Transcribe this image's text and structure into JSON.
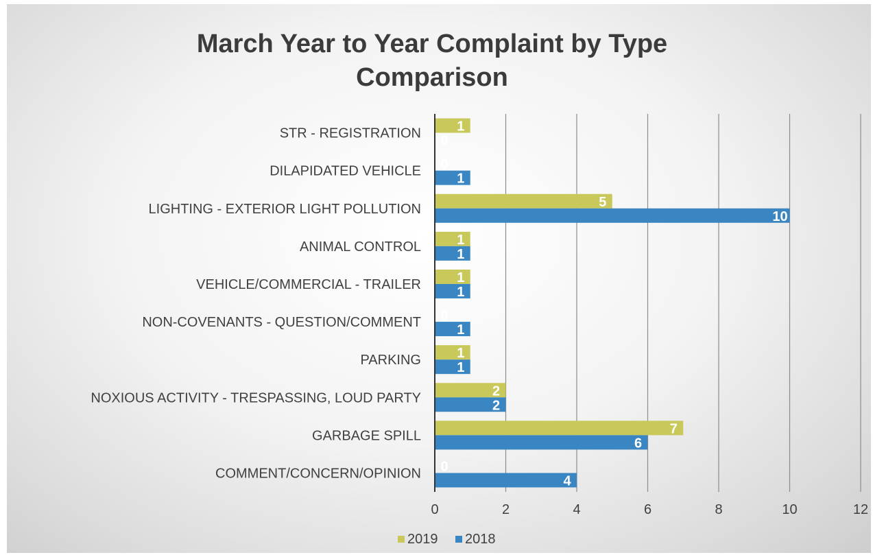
{
  "chart_data": {
    "type": "bar",
    "orientation": "horizontal",
    "title": "March Year to Year Complaint by Type Comparison",
    "title_lines": [
      "March Year to Year Complaint by Type",
      "Comparison"
    ],
    "categories": [
      "STR - REGISTRATION",
      "DILAPIDATED VEHICLE",
      "LIGHTING - EXTERIOR LIGHT POLLUTION",
      "ANIMAL CONTROL",
      "VEHICLE/COMMERCIAL - TRAILER",
      "NON-COVENANTS - QUESTION/COMMENT",
      "PARKING",
      "NOXIOUS ACTIVITY - TRESPASSING, LOUD PARTY",
      "GARBAGE SPILL",
      "COMMENT/CONCERN/OPINION"
    ],
    "series": [
      {
        "name": "2019",
        "color": "#c8c95a",
        "values": [
          1,
          0,
          5,
          1,
          1,
          0,
          1,
          2,
          7,
          0
        ]
      },
      {
        "name": "2018",
        "color": "#3a86c2",
        "values": [
          0,
          1,
          10,
          1,
          1,
          1,
          1,
          2,
          6,
          4
        ]
      }
    ],
    "xlim": [
      0,
      12
    ],
    "xticks": [
      0,
      2,
      4,
      6,
      8,
      10,
      12
    ],
    "grid": true,
    "legend_position": "bottom",
    "data_labels": true
  }
}
